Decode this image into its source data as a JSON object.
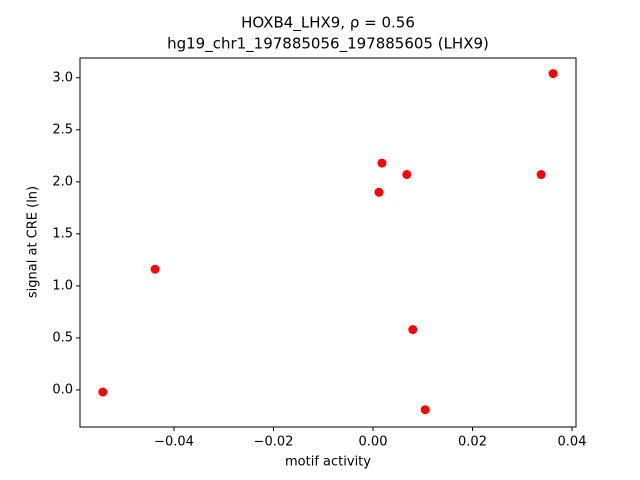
{
  "chart_data": {
    "type": "scatter",
    "title": [
      "HOXB4_LHX9, ρ = 0.56",
      "hg19_chr1_197885056_197885605 (LHX9)"
    ],
    "xlabel": "motif activity",
    "ylabel": "signal at CRE (ln)",
    "series": [
      {
        "color": "#ff0000",
        "x": [
          -0.0543,
          -0.0438,
          0.0012,
          0.0018,
          0.0068,
          0.008,
          0.0105,
          0.0338,
          0.0362
        ],
        "values": [
          -0.02,
          1.16,
          1.9,
          2.18,
          2.07,
          0.58,
          -0.19,
          2.07,
          3.04
        ]
      }
    ],
    "xlim": [
      -0.0589,
      0.0408
    ],
    "xticks": [
      {
        "value": -0.04,
        "label": "−0.04"
      },
      {
        "value": -0.02,
        "label": "−0.02"
      },
      {
        "value": 0,
        "label": "0.00"
      },
      {
        "value": 0.02,
        "label": "0.02"
      },
      {
        "value": 0.04,
        "label": "0.04"
      }
    ],
    "ylim": [
      -0.356,
      3.19
    ],
    "yticks": [
      {
        "value": 0,
        "label": "0.0"
      },
      {
        "value": 0.5,
        "label": "0.5"
      },
      {
        "value": 1,
        "label": "1.0"
      },
      {
        "value": 1.5,
        "label": "1.5"
      },
      {
        "value": 2,
        "label": "2.0"
      },
      {
        "value": 2.5,
        "label": "2.5"
      },
      {
        "value": 3,
        "label": "3.0"
      }
    ]
  }
}
